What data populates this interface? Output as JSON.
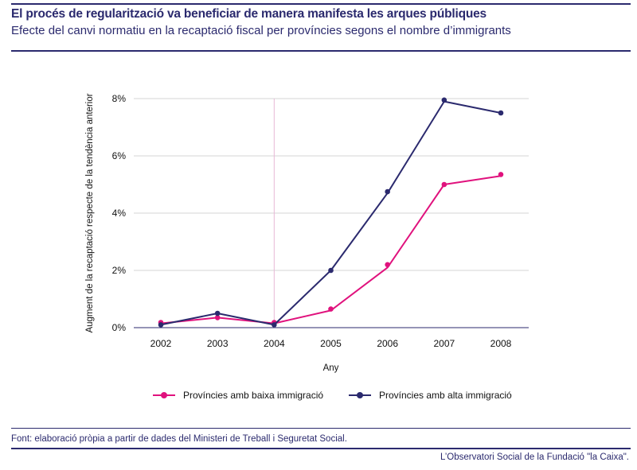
{
  "header": {
    "title": "El procés de regularització va beneficiar de manera manifesta les arques públiques",
    "subtitle": "Efecte del canvi normatiu en la recaptació fiscal per províncies segons el nombre d’immigrants"
  },
  "chart_data": {
    "type": "line",
    "title": "",
    "xlabel": "Any",
    "ylabel": "Augment de la recaptació respecte de la tendència anterior",
    "x": [
      "2002",
      "2003",
      "2004",
      "2005",
      "2006",
      "2007",
      "2008"
    ],
    "y_ticks": [
      "0%",
      "2%",
      "4%",
      "6%",
      "8%"
    ],
    "ylim": [
      0,
      8
    ],
    "grid": "horizontal",
    "vertical_reference_at": "2004",
    "legend_position": "bottom",
    "series": [
      {
        "name": "Províncies amb baixa immigració",
        "color": "#e0127d",
        "line": [
          0.15,
          0.35,
          0.15,
          0.6,
          2.1,
          5.0,
          5.3
        ],
        "points": [
          0.18,
          0.35,
          0.18,
          0.65,
          2.2,
          5.0,
          5.35
        ]
      },
      {
        "name": "Províncies amb alta immigració",
        "color": "#2b2a6e",
        "line": [
          0.1,
          0.5,
          0.1,
          2.0,
          4.7,
          7.9,
          7.5
        ],
        "points": [
          0.1,
          0.5,
          0.1,
          2.0,
          4.75,
          7.95,
          7.5
        ]
      }
    ]
  },
  "footer": {
    "source": "Font: elaboració pròpia a partir de dades del Ministeri de Treball i Seguretat Social.",
    "credit": "L’Observatori Social de la Fundació \"la Caixa\"."
  }
}
